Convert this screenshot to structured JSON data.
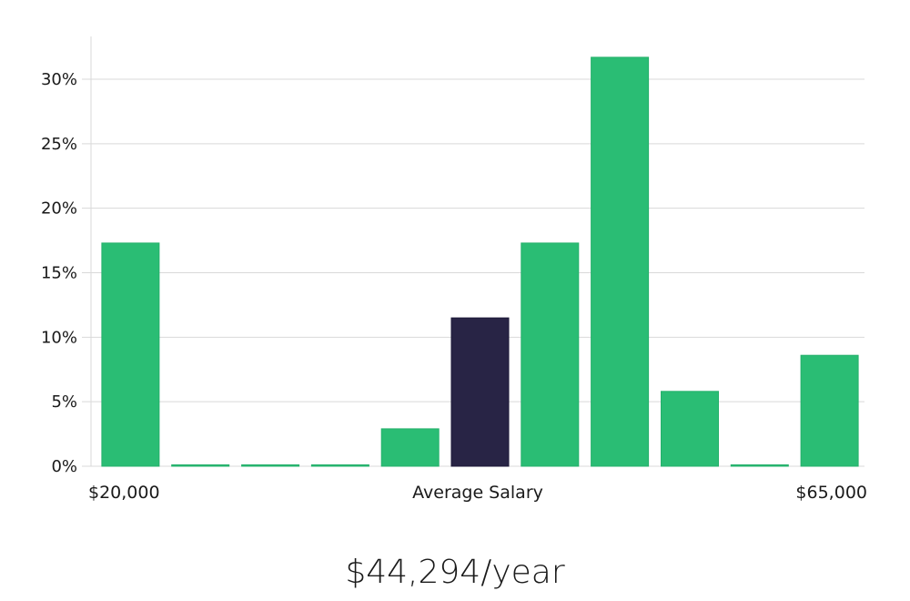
{
  "chart_data": {
    "type": "bar",
    "title": "",
    "xlabel": "Average Salary",
    "ylabel": "",
    "x_start_label": "$20,000",
    "x_end_label": "$65,000",
    "ylim": [
      0,
      33
    ],
    "yticks": [
      0,
      5,
      10,
      15,
      20,
      25,
      30
    ],
    "ytick_labels": [
      "0%",
      "5%",
      "10%",
      "15%",
      "20%",
      "25%",
      "30%"
    ],
    "values": [
      17.3,
      0,
      0,
      0,
      2.9,
      11.5,
      17.3,
      31.7,
      5.8,
      0,
      8.6
    ],
    "highlight_index": 5,
    "colors": {
      "bar": "#2abd74",
      "highlight": "#282445",
      "grid": "#d9d9d9"
    }
  },
  "salary_text": "$44,294/year"
}
